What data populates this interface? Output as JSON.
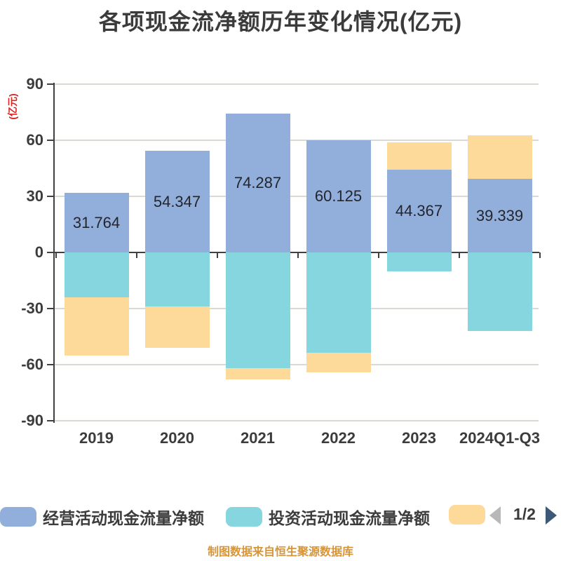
{
  "chart_data": {
    "type": "bar",
    "stacked": true,
    "title": "各项现金流净额历年变化情况(亿元)",
    "y_axis_name": "(亿元)",
    "categories": [
      "2019",
      "2020",
      "2021",
      "2022",
      "2023",
      "2024Q1-Q3"
    ],
    "series": [
      {
        "name": "经营活动现金流量净额",
        "color": "#92afdc",
        "values": [
          31.764,
          54.347,
          74.287,
          60.125,
          44.367,
          39.339
        ],
        "data_labels": true,
        "estimated": false
      },
      {
        "name": "投资活动现金流量净额",
        "color": "#85d6de",
        "values": [
          -24,
          -29,
          -62,
          -53.5,
          -10,
          -42
        ],
        "data_labels": false,
        "estimated": true
      },
      {
        "name": "",
        "color": "#fdda9a",
        "values": [
          -31,
          -22,
          -6,
          -10.5,
          14.6,
          23.3
        ],
        "data_labels": false,
        "estimated": true
      }
    ],
    "ylim": [
      -90,
      90
    ],
    "y_ticks": [
      90,
      60,
      30,
      0,
      -30,
      -60,
      -90
    ],
    "grid": true,
    "legend_position": "bottom"
  },
  "legend": {
    "items": [
      {
        "label": "经营活动现金流量净额",
        "color": "#92afdc"
      },
      {
        "label": "投资活动现金流量净额",
        "color": "#85d6de"
      },
      {
        "label": "",
        "color": "#fdda9a"
      }
    ],
    "pagination": {
      "current": "1/2"
    }
  },
  "footer": {
    "note": "制图数据来自恒生聚源数据库"
  },
  "colors": {
    "title": "#3b3b3b",
    "axis": "#3f4040",
    "grid": "#d9d9d3",
    "tick_label": "#3c3c3c",
    "value_label": "#23252e",
    "unit_label": "#dd2222",
    "footer": "#d6953a",
    "pager_prev": "#b8b8b8",
    "pager_next": "#3c5a78"
  }
}
